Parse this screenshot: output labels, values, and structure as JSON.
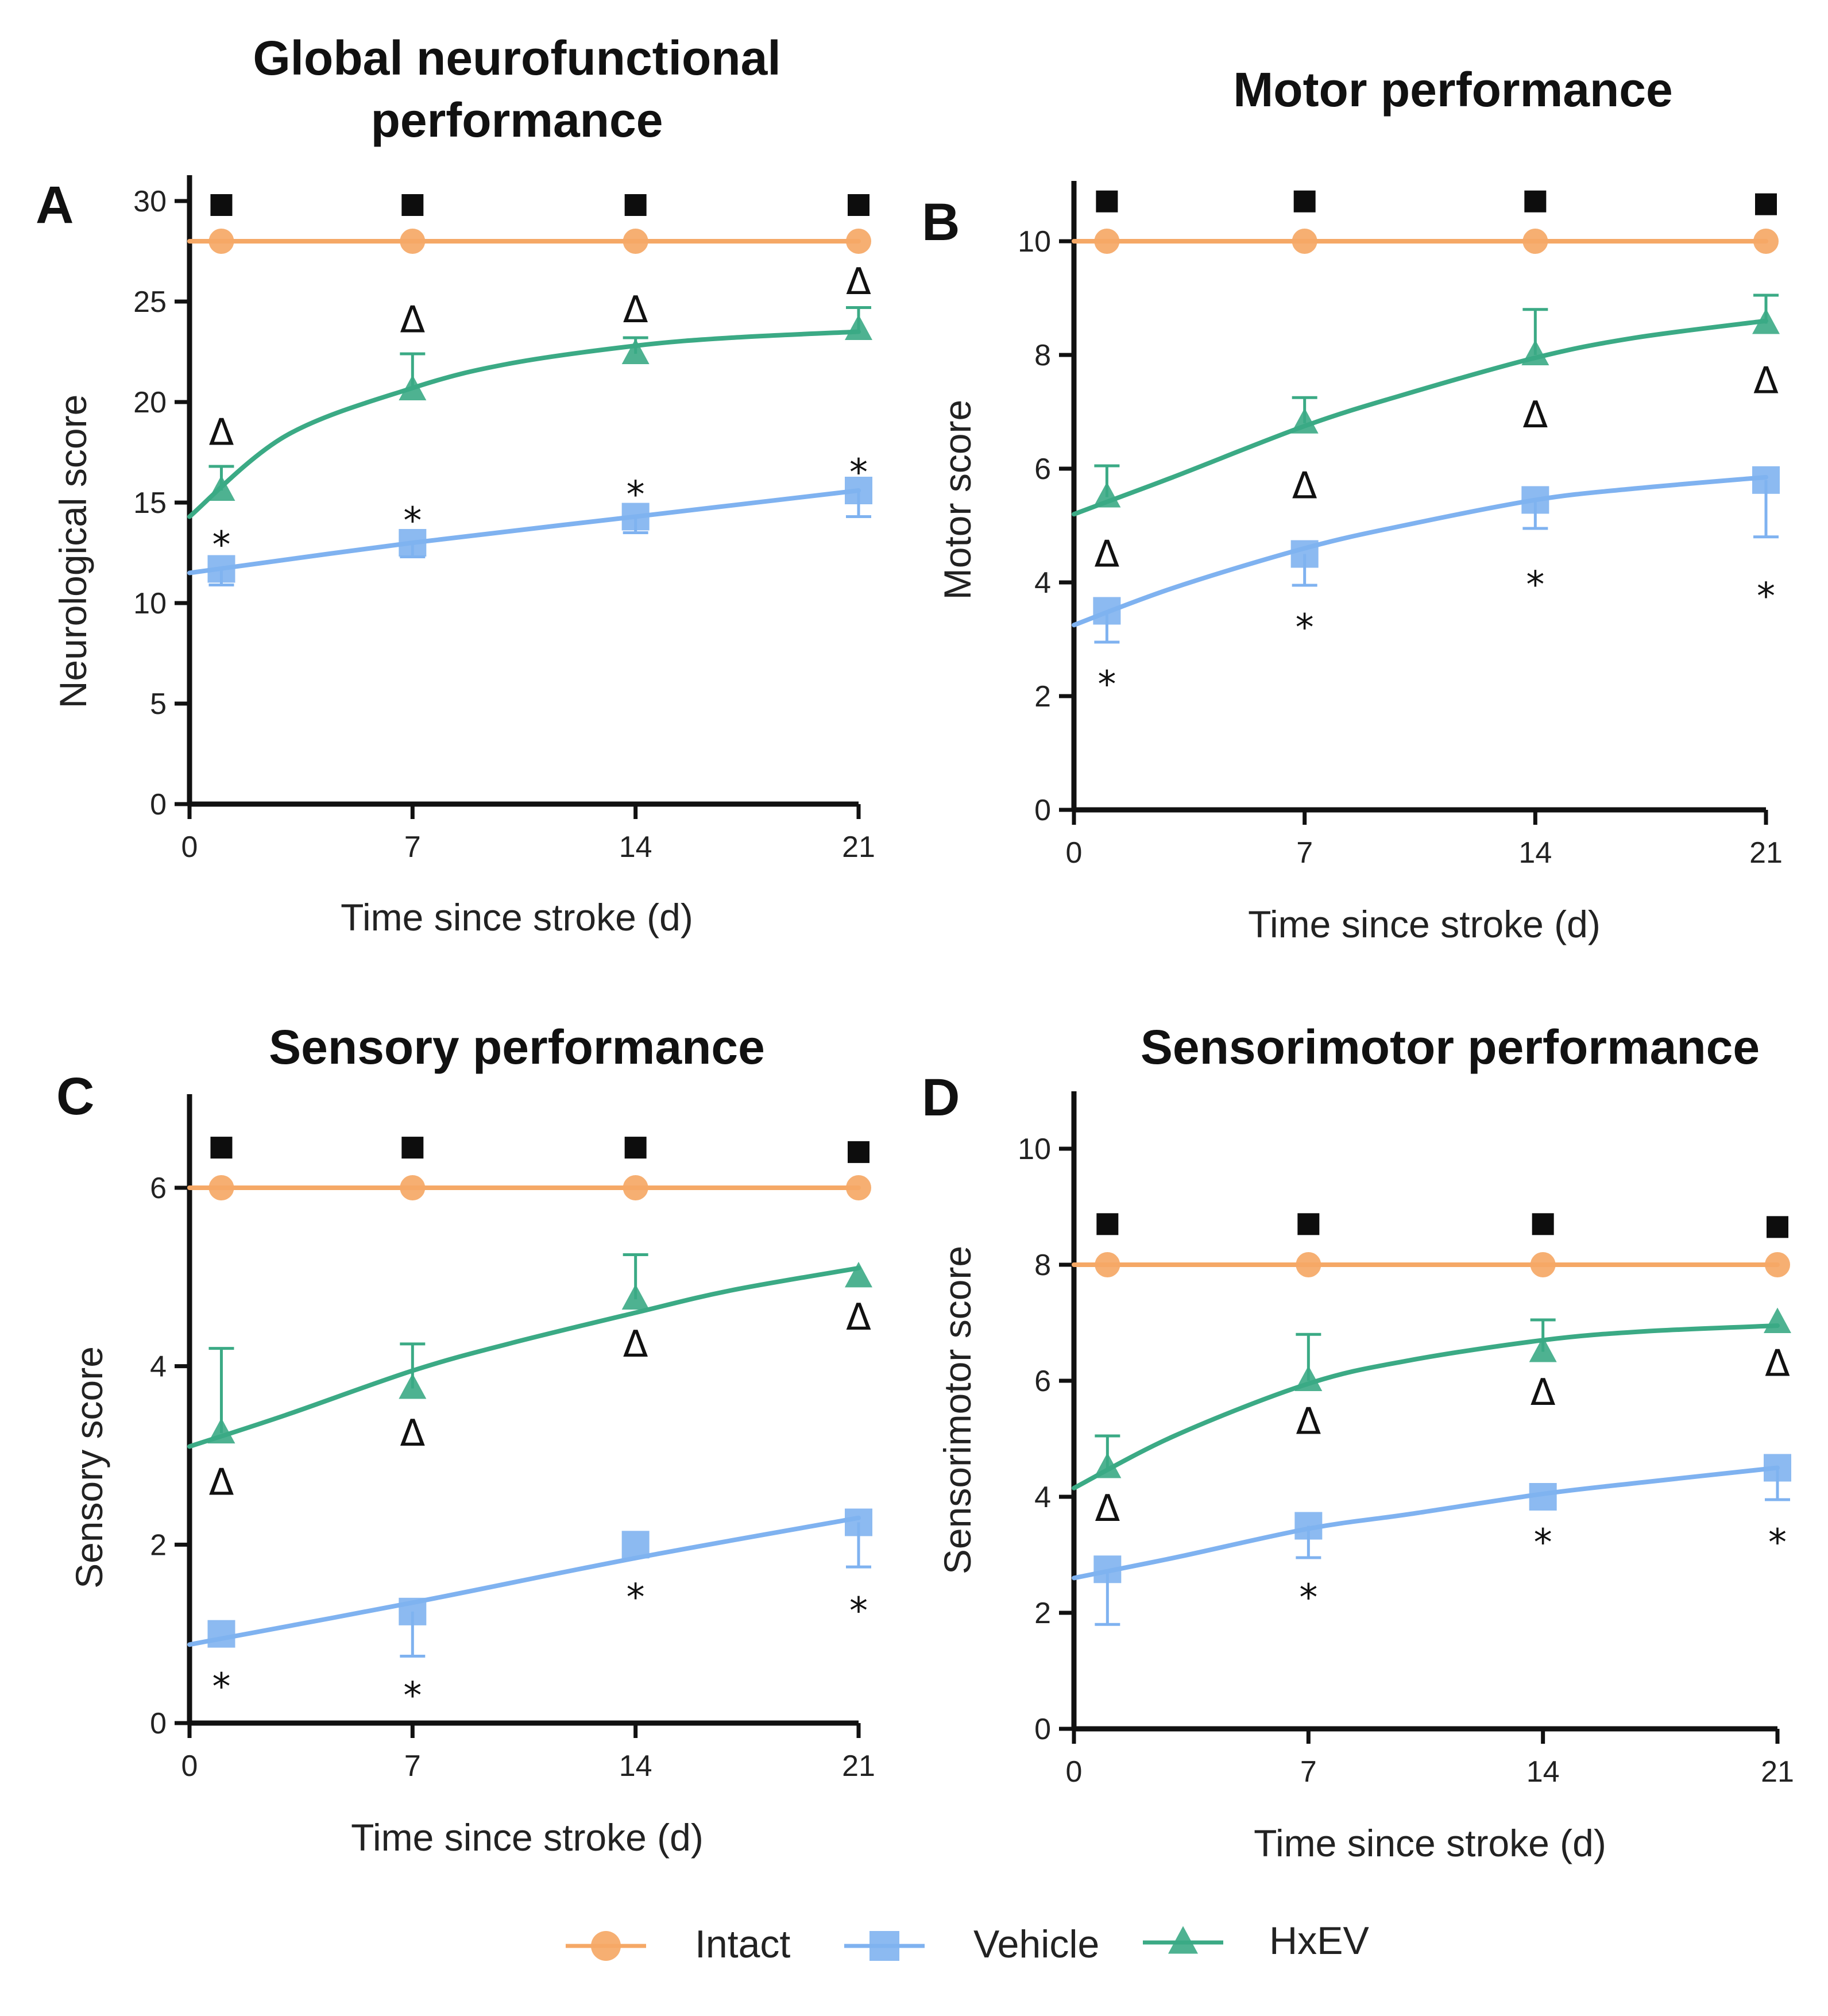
{
  "legend": {
    "placement": "bottom-center",
    "items": [
      {
        "label": "Intact",
        "color": "#F5A866",
        "marker": "circle"
      },
      {
        "label": "Vehicle",
        "color": "#7FB2F0",
        "marker": "square"
      },
      {
        "label": "HxEV",
        "color": "#3BAA85",
        "marker": "triangle"
      }
    ]
  },
  "chart_data": [
    {
      "panel": "A",
      "type": "line",
      "title": [
        "Global neurofunctional",
        "performance"
      ],
      "xlabel": "Time since stroke (d)",
      "ylabel": "Neurological score",
      "xlim": [
        0,
        21
      ],
      "ylim": [
        0,
        30
      ],
      "xticks": [
        0,
        7,
        14,
        21
      ],
      "yticks": [
        0,
        5,
        10,
        15,
        20,
        25,
        30
      ],
      "x": [
        1,
        7,
        14,
        21
      ],
      "series": [
        {
          "name": "Intact",
          "values": [
            28,
            28,
            28,
            28
          ],
          "err": [
            0,
            0,
            0,
            0
          ],
          "fit": [
            [
              0,
              28
            ],
            [
              21,
              28
            ]
          ]
        },
        {
          "name": "Vehicle",
          "values": [
            11.7,
            13.0,
            14.3,
            15.6
          ],
          "err": [
            0.8,
            0.7,
            0.8,
            1.3
          ],
          "fit": [
            [
              0,
              11.5
            ],
            [
              7,
              13.0
            ],
            [
              14,
              14.3
            ],
            [
              21,
              15.6
            ]
          ]
        },
        {
          "name": "HxEV",
          "values": [
            15.6,
            20.6,
            22.4,
            23.6
          ],
          "err": [
            1.2,
            1.8,
            0.8,
            1.1
          ],
          "fit": [
            [
              0,
              14.3
            ],
            [
              3,
              18.3
            ],
            [
              7,
              20.7
            ],
            [
              10,
              21.9
            ],
            [
              14,
              22.8
            ],
            [
              17,
              23.2
            ],
            [
              21,
              23.5
            ]
          ]
        }
      ],
      "markers": {
        "square": [
          [
            1,
            29.8
          ],
          [
            7,
            29.8
          ],
          [
            14,
            29.8
          ],
          [
            21,
            29.8
          ]
        ],
        "delta": [
          [
            1,
            18.5
          ],
          [
            7,
            24.1
          ],
          [
            14,
            24.6
          ],
          [
            21,
            26.0
          ]
        ],
        "star": [
          [
            1,
            13.3
          ],
          [
            7,
            14.5
          ],
          [
            14,
            15.8
          ],
          [
            21,
            16.9
          ]
        ]
      }
    },
    {
      "panel": "B",
      "type": "line",
      "title": [
        "Motor performance"
      ],
      "xlabel": "Time since stroke (d)",
      "ylabel": "Motor score",
      "xlim": [
        0,
        21
      ],
      "ylim": [
        0,
        11
      ],
      "xticks": [
        0,
        7,
        14,
        21
      ],
      "yticks": [
        0,
        2,
        4,
        6,
        8,
        10
      ],
      "x": [
        1,
        7,
        14,
        21
      ],
      "series": [
        {
          "name": "Intact",
          "values": [
            10,
            10,
            10,
            10
          ],
          "err": [
            0,
            0,
            0,
            0
          ],
          "fit": [
            [
              0,
              10
            ],
            [
              21,
              10
            ]
          ]
        },
        {
          "name": "Vehicle",
          "values": [
            3.5,
            4.5,
            5.45,
            5.8
          ],
          "err": [
            0.55,
            0.55,
            0.5,
            1.0
          ],
          "fit": [
            [
              0,
              3.25
            ],
            [
              3,
              3.9
            ],
            [
              7,
              4.6
            ],
            [
              10,
              5.0
            ],
            [
              14,
              5.45
            ],
            [
              17,
              5.65
            ],
            [
              21,
              5.85
            ]
          ]
        },
        {
          "name": "HxEV",
          "values": [
            5.5,
            6.8,
            8.0,
            8.55
          ],
          "err": [
            0.55,
            0.45,
            0.8,
            0.5
          ],
          "fit": [
            [
              0,
              5.2
            ],
            [
              3,
              5.85
            ],
            [
              7,
              6.75
            ],
            [
              10,
              7.3
            ],
            [
              14,
              7.95
            ],
            [
              17,
              8.3
            ],
            [
              21,
              8.6
            ]
          ]
        }
      ],
      "markers": {
        "square": [
          [
            1,
            10.7
          ],
          [
            7,
            10.7
          ],
          [
            14,
            10.7
          ],
          [
            21,
            10.65
          ]
        ],
        "delta": [
          [
            1,
            4.5
          ],
          [
            7,
            5.7
          ],
          [
            14,
            6.95
          ],
          [
            21,
            7.55
          ]
        ],
        "star": [
          [
            1,
            2.35
          ],
          [
            7,
            3.35
          ],
          [
            14,
            4.1
          ],
          [
            21,
            3.9
          ]
        ]
      }
    },
    {
      "panel": "C",
      "type": "line",
      "title": [
        "Sensory performance"
      ],
      "xlabel": "Time since stroke (d)",
      "ylabel": "Sensory score",
      "xlim": [
        0,
        21
      ],
      "ylim": [
        0,
        7
      ],
      "xticks": [
        0,
        7,
        14,
        21
      ],
      "yticks": [
        0,
        2,
        4,
        6
      ],
      "x": [
        1,
        7,
        14,
        21
      ],
      "series": [
        {
          "name": "Intact",
          "values": [
            6,
            6,
            6,
            6
          ],
          "err": [
            0,
            0,
            0,
            0
          ],
          "fit": [
            [
              0,
              6
            ],
            [
              21,
              6
            ]
          ]
        },
        {
          "name": "Vehicle",
          "values": [
            1.0,
            1.25,
            2.0,
            2.25
          ],
          "err": [
            0.0,
            0.5,
            0.0,
            0.5
          ],
          "fit": [
            [
              0,
              0.88
            ],
            [
              7,
              1.35
            ],
            [
              14,
              1.85
            ],
            [
              21,
              2.3
            ]
          ]
        },
        {
          "name": "HxEV",
          "values": [
            3.25,
            3.75,
            4.75,
            5.0
          ],
          "err": [
            0.95,
            0.5,
            0.5,
            0.0
          ],
          "fit": [
            [
              0,
              3.1
            ],
            [
              3,
              3.45
            ],
            [
              7,
              3.95
            ],
            [
              10,
              4.25
            ],
            [
              14,
              4.6
            ],
            [
              17,
              4.85
            ],
            [
              21,
              5.1
            ]
          ]
        }
      ],
      "markers": {
        "square": [
          [
            1,
            6.45
          ],
          [
            7,
            6.45
          ],
          [
            14,
            6.45
          ],
          [
            21,
            6.4
          ]
        ],
        "delta": [
          [
            1,
            2.7
          ],
          [
            7,
            3.25
          ],
          [
            14,
            4.25
          ],
          [
            21,
            4.55
          ]
        ],
        "star": [
          [
            1,
            0.5
          ],
          [
            7,
            0.4
          ],
          [
            14,
            1.5
          ],
          [
            21,
            1.35
          ]
        ]
      }
    },
    {
      "panel": "D",
      "type": "line",
      "title": [
        "Sensorimotor performance"
      ],
      "xlabel": "Time since stroke (d)",
      "ylabel": "Sensorimotor score",
      "xlim": [
        0,
        21
      ],
      "ylim": [
        0,
        11
      ],
      "xticks": [
        0,
        7,
        14,
        21
      ],
      "yticks": [
        0,
        2,
        4,
        6,
        8,
        10
      ],
      "x": [
        1,
        7,
        14,
        21
      ],
      "series": [
        {
          "name": "Intact",
          "values": [
            8,
            8,
            8,
            8
          ],
          "err": [
            0,
            0,
            0,
            0
          ],
          "fit": [
            [
              0,
              8
            ],
            [
              21,
              8
            ]
          ]
        },
        {
          "name": "Vehicle",
          "values": [
            2.75,
            3.5,
            4.0,
            4.5
          ],
          "err": [
            0.95,
            0.55,
            0.0,
            0.55
          ],
          "fit": [
            [
              0,
              2.6
            ],
            [
              3,
              2.95
            ],
            [
              7,
              3.45
            ],
            [
              10,
              3.7
            ],
            [
              14,
              4.05
            ],
            [
              17,
              4.25
            ],
            [
              21,
              4.5
            ]
          ]
        },
        {
          "name": "HxEV",
          "values": [
            4.5,
            6.0,
            6.5,
            7.0
          ],
          "err": [
            0.55,
            0.8,
            0.55,
            0.0
          ],
          "fit": [
            [
              0,
              4.15
            ],
            [
              3,
              5.05
            ],
            [
              7,
              5.95
            ],
            [
              10,
              6.35
            ],
            [
              14,
              6.7
            ],
            [
              17,
              6.85
            ],
            [
              21,
              6.95
            ]
          ]
        }
      ],
      "markers": {
        "square": [
          [
            1,
            8.7
          ],
          [
            7,
            8.7
          ],
          [
            14,
            8.7
          ],
          [
            21,
            8.65
          ]
        ],
        "delta": [
          [
            1,
            3.8
          ],
          [
            7,
            5.3
          ],
          [
            14,
            5.8
          ],
          [
            21,
            6.3
          ]
        ],
        "star": [
          [
            1,
            null
          ],
          [
            7,
            2.4
          ],
          [
            14,
            3.35
          ],
          [
            21,
            3.35
          ]
        ]
      }
    }
  ]
}
